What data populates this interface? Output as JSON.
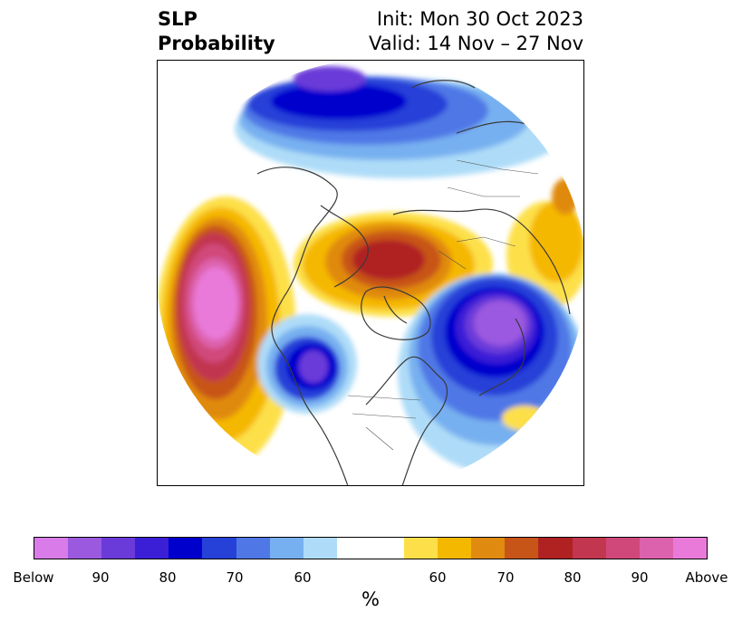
{
  "title": {
    "left_line1": "SLP",
    "left_line2": "Probability",
    "right_line1": "Init: Mon 30 Oct 2023",
    "right_line2": "Valid: 14 Nov – 27 Nov"
  },
  "colorbar": {
    "unit": "%",
    "ticks": [
      "Below",
      "90",
      "80",
      "70",
      "60",
      "60",
      "70",
      "80",
      "90",
      "Above"
    ],
    "below_colors": [
      "#d97be8",
      "#9b59e0",
      "#6b3bd9",
      "#3a1fd6",
      "#0000cd",
      "#2641d8",
      "#4f78e6",
      "#77b0f0",
      "#aedcf8"
    ],
    "neutral_color": "#ffffff",
    "above_colors": [
      "#fde049",
      "#f5b800",
      "#e08a10",
      "#c85518",
      "#b02222",
      "#c2364f",
      "#d0487a",
      "#dd62ad",
      "#e97ad9"
    ]
  }
}
